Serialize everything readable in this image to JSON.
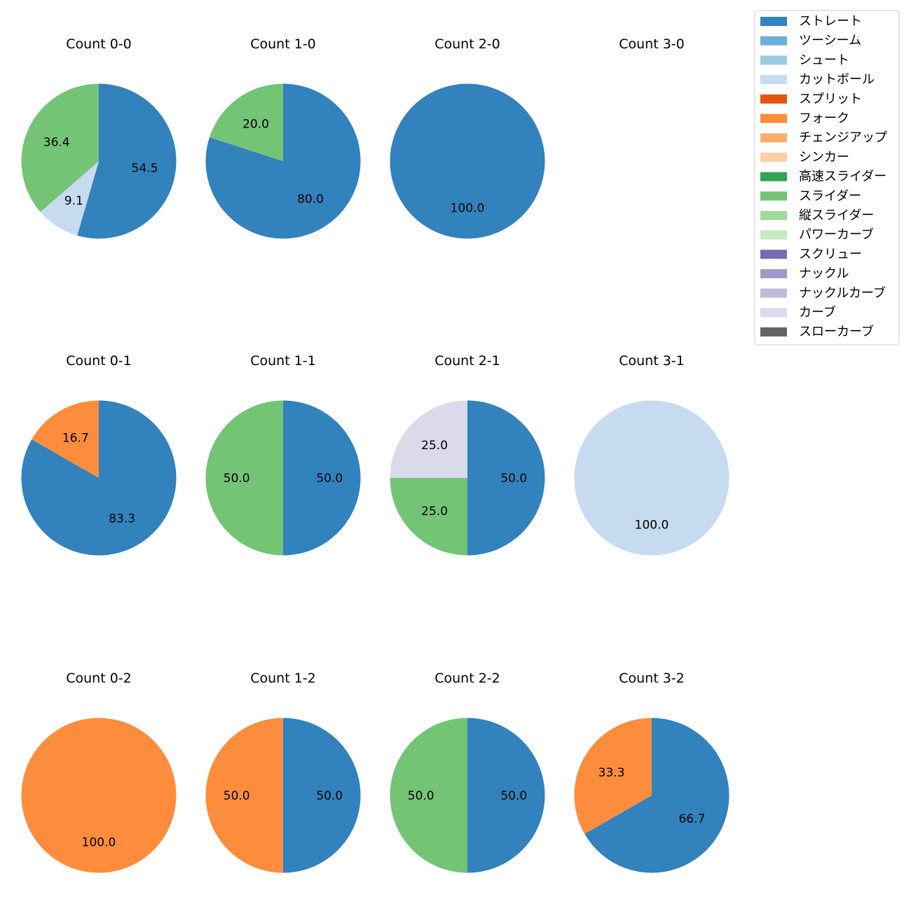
{
  "legend": {
    "entries": [
      {
        "label": "ストレート",
        "color": "#3182bd"
      },
      {
        "label": "ツーシーム",
        "color": "#6baed6"
      },
      {
        "label": "シュート",
        "color": "#9ecae1"
      },
      {
        "label": "カットボール",
        "color": "#c6dbef"
      },
      {
        "label": "スプリット",
        "color": "#e6550d"
      },
      {
        "label": "フォーク",
        "color": "#fd8d3c"
      },
      {
        "label": "チェンジアップ",
        "color": "#fdae6b"
      },
      {
        "label": "シンカー",
        "color": "#fdd0a2"
      },
      {
        "label": "高速スライダー",
        "color": "#31a354"
      },
      {
        "label": "スライダー",
        "color": "#74c476"
      },
      {
        "label": "縦スライダー",
        "color": "#a1d99b"
      },
      {
        "label": "パワーカーブ",
        "color": "#c7e9c0"
      },
      {
        "label": "スクリュー",
        "color": "#756bb1"
      },
      {
        "label": "ナックル",
        "color": "#9e9ac8"
      },
      {
        "label": "ナックルカーブ",
        "color": "#bcbddc"
      },
      {
        "label": "カーブ",
        "color": "#dadaeb"
      },
      {
        "label": "スローカーブ",
        "color": "#636363"
      }
    ]
  },
  "chart_data": [
    {
      "type": "pie",
      "title": "Count 0-0",
      "slices": [
        {
          "category": "ストレート",
          "value": 54.5,
          "label": "54.5"
        },
        {
          "category": "カットボール",
          "value": 9.1,
          "label": "9.1"
        },
        {
          "category": "スライダー",
          "value": 36.4,
          "label": "36.4"
        }
      ]
    },
    {
      "type": "pie",
      "title": "Count 1-0",
      "slices": [
        {
          "category": "ストレート",
          "value": 80.0,
          "label": "80.0"
        },
        {
          "category": "スライダー",
          "value": 20.0,
          "label": "20.0"
        }
      ]
    },
    {
      "type": "pie",
      "title": "Count 2-0",
      "slices": [
        {
          "category": "ストレート",
          "value": 100.0,
          "label": "100.0"
        }
      ]
    },
    {
      "type": "pie",
      "title": "Count 3-0",
      "slices": []
    },
    {
      "type": "pie",
      "title": "Count 0-1",
      "slices": [
        {
          "category": "ストレート",
          "value": 83.3,
          "label": "83.3"
        },
        {
          "category": "フォーク",
          "value": 16.7,
          "label": "16.7"
        }
      ]
    },
    {
      "type": "pie",
      "title": "Count 1-1",
      "slices": [
        {
          "category": "ストレート",
          "value": 50.0,
          "label": "50.0"
        },
        {
          "category": "スライダー",
          "value": 50.0,
          "label": "50.0"
        }
      ]
    },
    {
      "type": "pie",
      "title": "Count 2-1",
      "slices": [
        {
          "category": "ストレート",
          "value": 50.0,
          "label": "50.0"
        },
        {
          "category": "スライダー",
          "value": 25.0,
          "label": "25.0"
        },
        {
          "category": "カーブ",
          "value": 25.0,
          "label": "25.0"
        }
      ]
    },
    {
      "type": "pie",
      "title": "Count 3-1",
      "slices": [
        {
          "category": "カットボール",
          "value": 100.0,
          "label": "100.0"
        }
      ]
    },
    {
      "type": "pie",
      "title": "Count 0-2",
      "slices": [
        {
          "category": "フォーク",
          "value": 100.0,
          "label": "100.0"
        }
      ]
    },
    {
      "type": "pie",
      "title": "Count 1-2",
      "slices": [
        {
          "category": "ストレート",
          "value": 50.0,
          "label": "50.0"
        },
        {
          "category": "フォーク",
          "value": 50.0,
          "label": "50.0"
        }
      ]
    },
    {
      "type": "pie",
      "title": "Count 2-2",
      "slices": [
        {
          "category": "ストレート",
          "value": 50.0,
          "label": "50.0"
        },
        {
          "category": "スライダー",
          "value": 50.0,
          "label": "50.0"
        }
      ]
    },
    {
      "type": "pie",
      "title": "Count 3-2",
      "slices": [
        {
          "category": "ストレート",
          "value": 66.7,
          "label": "66.7"
        },
        {
          "category": "フォーク",
          "value": 33.3,
          "label": "33.3"
        }
      ]
    }
  ]
}
